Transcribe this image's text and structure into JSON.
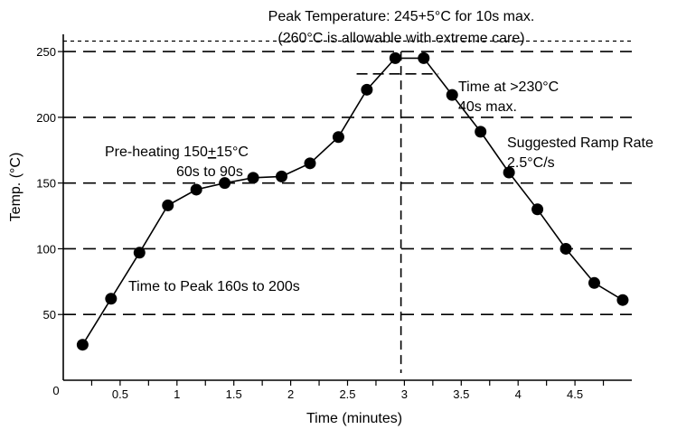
{
  "chart_data": {
    "type": "line",
    "title": "",
    "xlabel": "Time (minutes)",
    "ylabel": "Temp. (°C)",
    "xlim": [
      0,
      5
    ],
    "ylim": [
      0,
      270
    ],
    "x_ticks": [
      0.5,
      1,
      1.5,
      2,
      2.5,
      3,
      3.5,
      4,
      4.5
    ],
    "x_tick_labels": [
      "0.5",
      "1",
      "1.5",
      "2",
      "2.5",
      "3",
      "3.5",
      "4",
      "4.5"
    ],
    "origin_label": "0",
    "y_ticks": [
      50,
      100,
      150,
      200,
      250
    ],
    "y_tick_labels": [
      "50",
      "100",
      "150",
      "200",
      "250"
    ],
    "grid": true,
    "peak_limit_line": 258,
    "series": [
      {
        "x": [
          0.17,
          0.42,
          0.67,
          0.92,
          1.17,
          1.42,
          1.67,
          1.92,
          2.17,
          2.42,
          2.67,
          2.92,
          3.17,
          3.42,
          3.67,
          3.92,
          4.17,
          4.42,
          4.67,
          4.92
        ],
        "y": [
          27,
          62,
          97,
          133,
          145,
          150,
          154,
          155,
          165,
          185,
          221,
          245,
          245,
          217,
          189,
          158,
          130,
          100,
          74,
          61
        ]
      }
    ],
    "time_at_230_marker": {
      "x": 2.97,
      "y_top": 250,
      "y_bottom": 0,
      "hline_y": 233,
      "hline_x": [
        2.58,
        3.3
      ]
    },
    "annotations": {
      "peak_line1": "Peak Temperature: 245+5°C for 10s max.",
      "peak_line2": "(260°C is allowable with extreme care)",
      "time_above_line1": "Time at >230°C",
      "time_above_line2": "40s max.",
      "ramp_line1": "Suggested Ramp Rate",
      "ramp_line2": "2.5°C/s",
      "preheat_prefix": "Pre-heating 150",
      "preheat_pm": "+",
      "preheat_suffix": "15°C",
      "preheat_line2": "60s to 90s",
      "time_to_peak": "Time to Peak 160s to 200s"
    }
  }
}
